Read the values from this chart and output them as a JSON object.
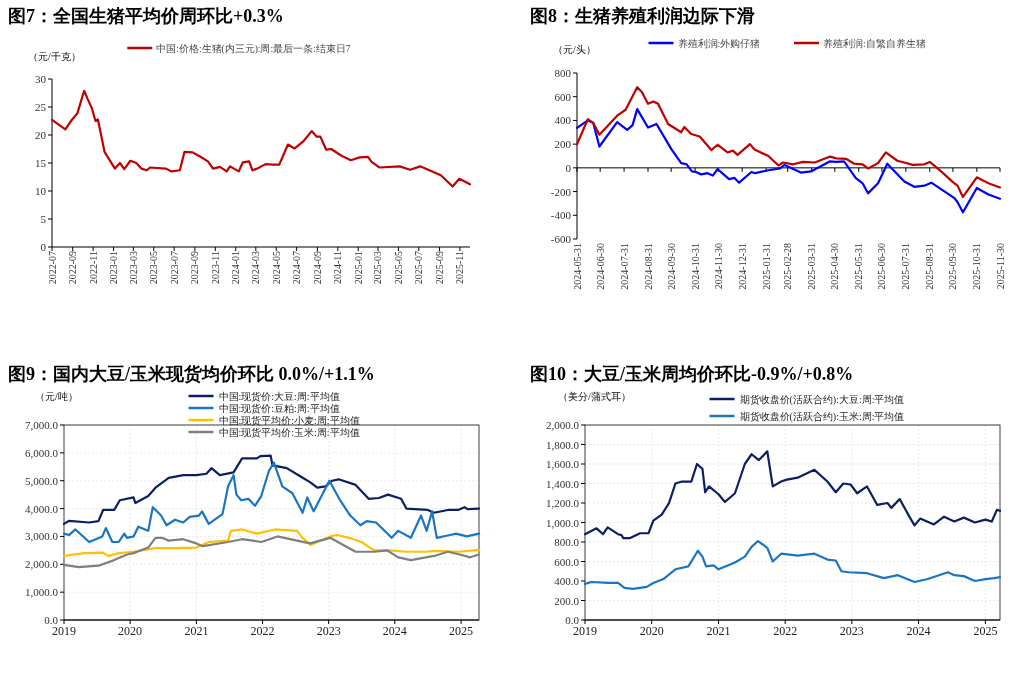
{
  "chart_data": [
    {
      "type": "line",
      "title": "图7：全国生猪平均价周环比+0.3%",
      "ylabel": "（元/千克）",
      "legend": "top",
      "xlim": [
        "2022-07",
        "2025-12"
      ],
      "xticks": [
        "2022-07",
        "2022-09",
        "2022-11",
        "2023-01",
        "2023-03",
        "2023-05",
        "2023-07",
        "2023-09",
        "2023-11",
        "2024-01",
        "2024-03",
        "2024-05",
        "2024-07",
        "2024-09",
        "2024-11",
        "2025-01",
        "2025-03",
        "2025-05",
        "2025-07",
        "2025-09",
        "2025-11"
      ],
      "ylim": [
        0,
        30
      ],
      "yticks": [
        0,
        5,
        10,
        15,
        20,
        25,
        30
      ],
      "series": [
        {
          "name": "中国:价格:生猪(内三元):周:最后一条:结束日7",
          "color": "#c00000",
          "x": [
            "2022-07-01",
            "2022-08-10",
            "2022-08-28",
            "2022-09-15",
            "2022-10-05",
            "2022-10-15",
            "2022-10-28",
            "2022-11-08",
            "2022-11-15",
            "2022-12-05",
            "2023-01-05",
            "2023-01-20",
            "2023-02-02",
            "2023-02-20",
            "2023-03-10",
            "2023-03-25",
            "2023-04-10",
            "2023-04-20",
            "2023-06-07",
            "2023-06-22",
            "2023-07-18",
            "2023-08-01",
            "2023-08-25",
            "2023-09-15",
            "2023-10-10",
            "2023-10-25",
            "2023-11-15",
            "2023-12-05",
            "2023-12-15",
            "2024-01-10",
            "2024-01-22",
            "2024-02-10",
            "2024-02-20",
            "2024-03-05",
            "2024-03-30",
            "2024-04-20",
            "2024-05-10",
            "2024-06-05",
            "2024-06-25",
            "2024-07-20",
            "2024-08-15",
            "2024-08-30",
            "2024-09-10",
            "2024-09-27",
            "2024-10-12",
            "2024-11-12",
            "2024-12-10",
            "2025-01-05",
            "2025-01-30",
            "2025-02-10",
            "2025-03-05",
            "2025-05-05",
            "2025-06-05",
            "2025-07-05",
            "2025-08-05",
            "2025-09-05",
            "2025-10-10",
            "2025-10-30",
            "2025-11-18",
            "2025-12-01"
          ],
          "values": [
            22.7,
            21.0,
            22.6,
            23.9,
            27.9,
            26.5,
            24.8,
            22.5,
            22.8,
            17.0,
            14.0,
            15.0,
            13.9,
            15.4,
            15.0,
            14.0,
            13.7,
            14.2,
            14.0,
            13.5,
            13.7,
            17.0,
            16.9,
            16.2,
            15.3,
            14.0,
            14.3,
            13.5,
            14.4,
            13.5,
            15.1,
            15.3,
            13.7,
            14.0,
            14.8,
            14.7,
            14.7,
            18.3,
            17.6,
            18.8,
            20.7,
            19.7,
            19.7,
            17.4,
            17.5,
            16.3,
            15.5,
            16.0,
            16.1,
            15.2,
            14.2,
            14.4,
            13.8,
            14.4,
            13.6,
            12.8,
            10.8,
            12.2,
            11.6,
            11.2
          ]
        }
      ]
    },
    {
      "type": "line",
      "title": "图8：生猪养殖利润边际下滑",
      "ylabel": "（元/头）",
      "legend": "top",
      "xlim": [
        "2024-05-31",
        "2025-11-30"
      ],
      "xticks": [
        "2024-05-31",
        "2024-06-30",
        "2024-07-31",
        "2024-08-31",
        "2024-09-30",
        "2024-10-31",
        "2024-11-30",
        "2024-12-31",
        "2025-01-31",
        "2025-02-28",
        "2025-03-31",
        "2025-04-30",
        "2025-05-31",
        "2025-06-30",
        "2025-07-31",
        "2025-08-31",
        "2025-09-30",
        "2025-10-31",
        "2025-11-30"
      ],
      "ylim": [
        -600,
        800
      ],
      "yticks": [
        -600,
        -400,
        -200,
        0,
        200,
        400,
        600,
        800
      ],
      "series": [
        {
          "name": "养殖利润:外购仔猪",
          "color": "#0000ff",
          "x": [
            "2024-05-31",
            "2024-06-14",
            "2024-06-21",
            "2024-06-29",
            "2024-07-22",
            "2024-08-04",
            "2024-08-11",
            "2024-08-17",
            "2024-08-31",
            "2024-09-11",
            "2024-09-30",
            "2024-10-13",
            "2024-10-20",
            "2024-10-27",
            "2024-11-01",
            "2024-11-08",
            "2024-11-16",
            "2024-11-23",
            "2024-11-29",
            "2024-12-14",
            "2024-12-21",
            "2024-12-27",
            "2025-01-12",
            "2025-01-17",
            "2025-02-03",
            "2025-02-18",
            "2025-02-24",
            "2025-03-17",
            "2025-03-30",
            "2025-04-24",
            "2025-05-02",
            "2025-05-12",
            "2025-05-27",
            "2025-06-05",
            "2025-06-12",
            "2025-06-25",
            "2025-07-07",
            "2025-07-29",
            "2025-08-11",
            "2025-08-24",
            "2025-09-02",
            "2025-10-02",
            "2025-10-06",
            "2025-10-13",
            "2025-10-31",
            "2025-11-15",
            "2025-11-30"
          ],
          "values": [
            337,
            400,
            380,
            180,
            385,
            320,
            360,
            495,
            340,
            370,
            160,
            40,
            30,
            -30,
            -35,
            -55,
            -45,
            -65,
            -10,
            -95,
            -85,
            -125,
            -35,
            -45,
            -20,
            -5,
            25,
            -40,
            -30,
            55,
            50,
            55,
            -85,
            -130,
            -215,
            -130,
            35,
            -115,
            -160,
            -150,
            -125,
            -255,
            -290,
            -375,
            -170,
            -225,
            -260
          ]
        },
        {
          "name": "养殖利润:自繁自养生猪",
          "color": "#c00000",
          "x": [
            "2024-05-31",
            "2024-06-14",
            "2024-06-21",
            "2024-06-29",
            "2024-07-22",
            "2024-08-02",
            "2024-08-17",
            "2024-08-23",
            "2024-08-31",
            "2024-09-07",
            "2024-09-13",
            "2024-09-26",
            "2024-10-13",
            "2024-10-17",
            "2024-10-26",
            "2024-11-06",
            "2024-11-21",
            "2024-11-29",
            "2024-12-12",
            "2024-12-19",
            "2024-12-25",
            "2025-01-10",
            "2025-01-16",
            "2025-02-03",
            "2025-02-16",
            "2025-02-22",
            "2025-03-07",
            "2025-03-20",
            "2025-04-04",
            "2025-04-24",
            "2025-05-02",
            "2025-05-15",
            "2025-05-25",
            "2025-06-05",
            "2025-06-12",
            "2025-06-25",
            "2025-07-05",
            "2025-07-20",
            "2025-07-29",
            "2025-08-09",
            "2025-08-24",
            "2025-08-31",
            "2025-09-14",
            "2025-09-30",
            "2025-10-06",
            "2025-10-13",
            "2025-10-31",
            "2025-11-15",
            "2025-11-30"
          ],
          "values": [
            200,
            410,
            380,
            280,
            440,
            490,
            680,
            640,
            540,
            560,
            540,
            370,
            300,
            345,
            285,
            265,
            150,
            195,
            130,
            145,
            110,
            200,
            155,
            100,
            20,
            45,
            30,
            50,
            45,
            95,
            80,
            75,
            35,
            30,
            -5,
            40,
            130,
            60,
            45,
            25,
            30,
            50,
            -25,
            -120,
            -150,
            -245,
            -80,
            -130,
            -165
          ]
        }
      ]
    },
    {
      "type": "line",
      "title": "图9：国内大豆/玉米现货均价环比 0.0%/+1.1%",
      "ylabel": "（元/吨）",
      "legend": "top",
      "grid": true,
      "xlim": [
        "2019",
        "2025-04-10"
      ],
      "xticks": [
        "2019",
        "2020",
        "2021",
        "2022",
        "2023",
        "2024",
        "2025"
      ],
      "ylim": [
        0,
        7000
      ],
      "yticks": [
        {
          "value": 0,
          "label": "0.0"
        },
        {
          "value": 1000,
          "label": "1,000.0"
        },
        {
          "value": 2000,
          "label": "2,000.0"
        },
        {
          "value": 3000,
          "label": "3,000.0"
        },
        {
          "value": 4000,
          "label": "4,000.0"
        },
        {
          "value": 5000,
          "label": "5,000.0"
        },
        {
          "value": 6000,
          "label": "6,000.0"
        },
        {
          "value": 7000,
          "label": "7,000.0"
        }
      ],
      "series": [
        {
          "name": "中国:现货价:大豆:周:平均值",
          "color": "#0b1f65",
          "x": [
            "2019-01-01",
            "2019-01-28",
            "2019-05-20",
            "2019-07-10",
            "2019-08-05",
            "2019-10-05",
            "2019-11-05",
            "2020-01-20",
            "2020-01-30",
            "2020-04-10",
            "2020-05-20",
            "2020-08-01",
            "2020-10-20",
            "2021-01-01",
            "2021-02-25",
            "2021-03-25",
            "2021-05-10",
            "2021-07-25",
            "2021-09-10",
            "2021-12-01",
            "2021-12-20",
            "2022-02-15",
            "2022-02-25",
            "2022-05-15",
            "2022-07-30",
            "2022-09-20",
            "2022-10-30",
            "2022-12-15",
            "2023-01-20",
            "2023-02-25",
            "2023-05-30",
            "2023-08-10",
            "2023-10-05",
            "2023-11-25",
            "2024-02-05",
            "2024-03-05",
            "2024-07-01",
            "2024-08-05",
            "2024-10-20",
            "2024-12-15",
            "2025-01-20",
            "2025-02-05",
            "2025-04-10"
          ],
          "values": [
            3450,
            3560,
            3500,
            3550,
            3950,
            3950,
            4300,
            4400,
            4200,
            4450,
            4750,
            5100,
            5200,
            5200,
            5250,
            5450,
            5200,
            5300,
            5800,
            5800,
            5880,
            5900,
            5550,
            5450,
            5150,
            4950,
            4750,
            4800,
            5000,
            5050,
            4850,
            4350,
            4380,
            4500,
            4350,
            4000,
            3950,
            3850,
            3950,
            3950,
            4050,
            3980,
            4000
          ]
        },
        {
          "name": "中国:现货价:豆粕:周:平均值",
          "color": "#1a75c4",
          "x": [
            "2019-01-01",
            "2019-01-28",
            "2019-03-05",
            "2019-05-20",
            "2019-08-01",
            "2019-08-20",
            "2019-09-25",
            "2019-10-30",
            "2019-11-30",
            "2019-12-15",
            "2020-01-20",
            "2020-02-15",
            "2020-04-10",
            "2020-05-05",
            "2020-06-20",
            "2020-07-20",
            "2020-09-05",
            "2020-10-20",
            "2020-11-25",
            "2021-01-15",
            "2021-02-01",
            "2021-03-10",
            "2021-05-25",
            "2021-06-25",
            "2021-07-25",
            "2021-08-10",
            "2021-09-05",
            "2021-10-15",
            "2021-11-20",
            "2021-12-25",
            "2022-02-05",
            "2022-03-05",
            "2022-04-20",
            "2022-06-15",
            "2022-08-10",
            "2022-09-05",
            "2022-10-10",
            "2023-01-05",
            "2023-03-05",
            "2023-04-30",
            "2023-06-25",
            "2023-07-30",
            "2023-09-20",
            "2023-12-15",
            "2024-01-20",
            "2024-03-30",
            "2024-05-25",
            "2024-06-25",
            "2024-07-25",
            "2024-08-20",
            "2024-11-01",
            "2024-12-05",
            "2025-02-01",
            "2025-04-10"
          ],
          "values": [
            3100,
            3050,
            3250,
            2800,
            3000,
            3300,
            2800,
            2800,
            3100,
            2950,
            3000,
            3350,
            3200,
            4050,
            3750,
            3400,
            3600,
            3500,
            3700,
            3750,
            3900,
            3450,
            3800,
            4800,
            5200,
            4500,
            4300,
            4350,
            4100,
            4450,
            5350,
            5650,
            4800,
            4550,
            3850,
            4400,
            3900,
            5000,
            4300,
            3750,
            3400,
            3550,
            3500,
            2950,
            3200,
            2950,
            3750,
            3200,
            3900,
            2950,
            3050,
            3100,
            3000,
            3100
          ]
        },
        {
          "name": "中国:现货平均价:小麦:周:平均值",
          "color": "#ffc000",
          "x": [
            "2019-01-01",
            "2019-04-25",
            "2019-08-01",
            "2019-09-05",
            "2019-10-30",
            "2020-01-20",
            "2020-05-20",
            "2020-09-05",
            "2021-01-01",
            "2021-03-10",
            "2021-06-25",
            "2021-07-10",
            "2021-09-10",
            "2021-12-01",
            "2022-03-10",
            "2022-07-10",
            "2022-08-10",
            "2022-09-25",
            "2023-01-10",
            "2023-02-15",
            "2023-04-25",
            "2023-07-01",
            "2023-09-10",
            "2023-12-05",
            "2024-03-05",
            "2024-06-25",
            "2024-08-05",
            "2024-12-25",
            "2025-04-10"
          ],
          "values": [
            2300,
            2400,
            2420,
            2300,
            2400,
            2450,
            2580,
            2580,
            2600,
            2800,
            2850,
            3200,
            3250,
            3100,
            3250,
            3200,
            2950,
            2700,
            3000,
            3050,
            2950,
            2800,
            2500,
            2500,
            2450,
            2450,
            2480,
            2450,
            2520
          ]
        },
        {
          "name": "中国:现货平均价:玉米:周:平均值",
          "color": "#7f7f7f",
          "x": [
            "2019-01-01",
            "2019-03-25",
            "2019-07-10",
            "2019-10-05",
            "2019-12-15",
            "2020-01-20",
            "2020-04-10",
            "2020-05-20",
            "2020-06-25",
            "2020-08-01",
            "2020-10-20",
            "2021-01-01",
            "2021-02-05",
            "2021-06-25",
            "2021-09-10",
            "2021-12-25",
            "2022-03-25",
            "2022-07-10",
            "2022-09-20",
            "2023-01-10",
            "2023-03-20",
            "2023-05-30",
            "2023-09-10",
            "2023-11-20",
            "2024-01-20",
            "2024-03-30",
            "2024-08-05",
            "2024-10-20",
            "2024-12-25",
            "2025-02-20",
            "2025-04-10"
          ],
          "values": [
            1980,
            1900,
            1950,
            2150,
            2350,
            2400,
            2600,
            2950,
            2950,
            2850,
            2900,
            2750,
            2650,
            2800,
            2900,
            2800,
            3000,
            2850,
            2750,
            2950,
            2700,
            2450,
            2450,
            2500,
            2250,
            2150,
            2300,
            2450,
            2350,
            2250,
            2350
          ]
        }
      ]
    },
    {
      "type": "line",
      "title": "图10：大豆/玉米周均价环比-0.9%/+0.8%",
      "ylabel": "（美分/蒲式耳）",
      "legend": "top",
      "grid": true,
      "xlim": [
        "2019",
        "2025-03-22"
      ],
      "xticks": [
        "2019",
        "2020",
        "2021",
        "2022",
        "2023",
        "2024",
        "2025"
      ],
      "ylim": [
        0,
        2000
      ],
      "yticks": [
        {
          "value": 0,
          "label": "0.0"
        },
        {
          "value": 200,
          "label": "200.0"
        },
        {
          "value": 400,
          "label": "400.0"
        },
        {
          "value": 600,
          "label": "600.0"
        },
        {
          "value": 800,
          "label": "800.0"
        },
        {
          "value": 1000,
          "label": "1,000.0"
        },
        {
          "value": 1200,
          "label": "1,200.0"
        },
        {
          "value": 1400,
          "label": "1,400.0"
        },
        {
          "value": 1600,
          "label": "1,600.0"
        },
        {
          "value": 1800,
          "label": "1,800.0"
        },
        {
          "value": 2000,
          "label": "2,000.0"
        }
      ],
      "series": [
        {
          "name": "期货收盘价(活跃合约):大豆:周:平均值",
          "color": "#0b1f65",
          "x": [
            "2019-01-01",
            "2019-03-05",
            "2019-04-10",
            "2019-05-05",
            "2019-07-01",
            "2019-07-20",
            "2019-07-30",
            "2019-09-05",
            "2019-10-30",
            "2019-12-15",
            "2020-01-10",
            "2020-02-25",
            "2020-04-05",
            "2020-05-10",
            "2020-06-15",
            "2020-08-05",
            "2020-09-05",
            "2020-10-05",
            "2020-10-20",
            "2020-11-10",
            "2021-01-01",
            "2021-02-05",
            "2021-04-01",
            "2021-05-25",
            "2021-07-01",
            "2021-08-10",
            "2021-09-25",
            "2021-10-25",
            "2021-12-10",
            "2022-01-10",
            "2022-03-10",
            "2022-06-10",
            "2022-08-20",
            "2022-10-05",
            "2022-11-15",
            "2022-12-25",
            "2023-01-30",
            "2023-03-25",
            "2023-05-20",
            "2023-07-15",
            "2023-08-05",
            "2023-09-20",
            "2023-11-15",
            "2023-12-10",
            "2024-01-10",
            "2024-03-25",
            "2024-05-20",
            "2024-07-15",
            "2024-09-05",
            "2024-11-05",
            "2025-01-01",
            "2025-02-05",
            "2025-03-05",
            "2025-03-22"
          ],
          "values": [
            880,
            940,
            880,
            950,
            880,
            870,
            840,
            840,
            890,
            890,
            1020,
            1080,
            1200,
            1400,
            1420,
            1420,
            1600,
            1550,
            1310,
            1370,
            1290,
            1210,
            1300,
            1600,
            1700,
            1640,
            1730,
            1370,
            1420,
            1440,
            1460,
            1540,
            1420,
            1310,
            1400,
            1390,
            1300,
            1370,
            1180,
            1200,
            1150,
            1240,
            1050,
            970,
            1040,
            980,
            1060,
            1010,
            1050,
            1000,
            1030,
            1010,
            1130,
            1120
          ]
        },
        {
          "name": "期货收盘价(活跃合约):玉米:周:平均值",
          "color": "#1a75c4",
          "x": [
            "2019-01-01",
            "2019-02-05",
            "2019-05-10",
            "2019-07-01",
            "2019-08-05",
            "2019-09-20",
            "2019-12-05",
            "2020-01-10",
            "2020-03-05",
            "2020-05-10",
            "2020-07-20",
            "2020-09-10",
            "2020-10-05",
            "2020-10-25",
            "2020-12-05",
            "2021-01-01",
            "2021-04-01",
            "2021-05-25",
            "2021-07-01",
            "2021-08-05",
            "2021-09-25",
            "2021-10-25",
            "2021-12-10",
            "2022-03-10",
            "2022-06-10",
            "2022-08-20",
            "2022-10-05",
            "2022-11-05",
            "2022-12-15",
            "2023-03-25",
            "2023-06-25",
            "2023-09-10",
            "2023-12-10",
            "2024-02-20",
            "2024-06-10",
            "2024-07-15",
            "2024-09-05",
            "2024-11-05",
            "2025-01-01",
            "2025-02-20",
            "2025-03-22"
          ],
          "values": [
            370,
            390,
            380,
            380,
            330,
            320,
            340,
            380,
            420,
            520,
            550,
            710,
            650,
            550,
            560,
            520,
            590,
            650,
            750,
            810,
            740,
            600,
            680,
            660,
            680,
            620,
            610,
            500,
            490,
            480,
            430,
            460,
            390,
            420,
            490,
            460,
            450,
            400,
            420,
            430,
            440
          ]
        }
      ]
    }
  ]
}
